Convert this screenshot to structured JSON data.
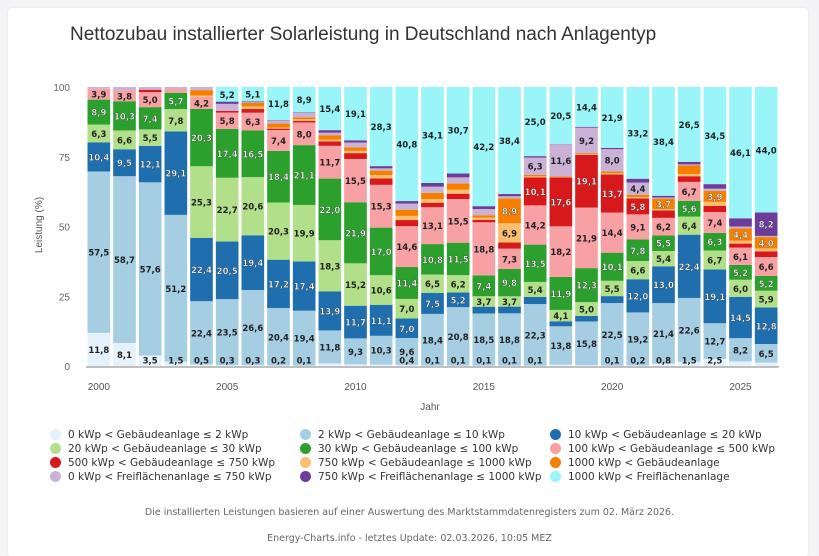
{
  "title": "Nettozubau installierter Solarleistung in Deutschland nach Anlagentyp",
  "footnotes": {
    "source": "Die installierten Leistungen basieren auf einer Auswertung des Marktstammdatenregisters zum 02. März 2026.",
    "update": "Energy-Charts.info - letztes Update: 02.03.2026, 10:05 MEZ"
  },
  "chart_data": {
    "type": "bar",
    "stacked": true,
    "title": "Nettozubau installierter Solarleistung in Deutschland nach Anlagentyp",
    "xlabel": "Jahr",
    "ylabel": "Leistung (%)",
    "ylim": [
      0,
      100
    ],
    "yticks": [
      "0",
      "25",
      "50",
      "75",
      "100"
    ],
    "xticks": [
      "2000",
      "2005",
      "2010",
      "2015",
      "2020",
      "2025"
    ],
    "legend_position": "bottom",
    "categories": [
      "2000",
      "2001",
      "2002",
      "2003",
      "2004",
      "2005",
      "2006",
      "2007",
      "2008",
      "2009",
      "2010",
      "2011",
      "2012",
      "2013",
      "2014",
      "2015",
      "2016",
      "2017",
      "2018",
      "2019",
      "2020",
      "2021",
      "2022",
      "2023",
      "2024",
      "2025",
      "2026"
    ],
    "series": [
      {
        "name": "0 kWp < Gebäudeanlage ≤ 2 kWp",
        "color": "#e6f2fb",
        "values": [
          11.8,
          8.1,
          3.5,
          1.5,
          0.5,
          0.3,
          0.3,
          0.2,
          0.1,
          0.9,
          0.6,
          0.5,
          0.4,
          0.1,
          0.1,
          0.1,
          0.1,
          0.1,
          0.5,
          0.3,
          0.1,
          0.2,
          0.8,
          1.5,
          2.5,
          1.6,
          1.2
        ]
      },
      {
        "name": "2 kWp < Gebäudeanlage ≤ 10 kWp",
        "color": "#a6cee3",
        "values": [
          57.5,
          58.7,
          57.6,
          51.2,
          22.4,
          23.5,
          26.6,
          20.4,
          19.4,
          11.8,
          9.3,
          10.3,
          9.6,
          18.4,
          20.8,
          18.5,
          18.8,
          22.3,
          13.8,
          15.8,
          22.5,
          19.2,
          21.4,
          22.6,
          12.7,
          8.2,
          6.5
        ]
      },
      {
        "name": "10 kWp < Gebäudeanlage ≤ 20 kWp",
        "color": "#1f6fae",
        "values": [
          10.4,
          9.5,
          12.1,
          29.1,
          22.4,
          20.5,
          19.4,
          17.2,
          17.4,
          13.9,
          11.7,
          11.1,
          7.0,
          7.5,
          5.2,
          2.4,
          2.4,
          2.6,
          1.8,
          2.0,
          2.5,
          12.0,
          13.0,
          22.4,
          19.1,
          14.5,
          12.8
        ]
      },
      {
        "name": "20 kWp < Gebäudeanlage ≤ 30 kWp",
        "color": "#b2df8a",
        "values": [
          6.3,
          6.6,
          5.5,
          7.8,
          25.3,
          22.7,
          20.6,
          20.3,
          19.9,
          18.3,
          15.2,
          10.6,
          7.0,
          6.5,
          6.2,
          3.7,
          3.7,
          5.4,
          4.1,
          5.0,
          5.5,
          6.6,
          5.4,
          6.4,
          6.7,
          6.0,
          5.9
        ]
      },
      {
        "name": "30 kWp < Gebäudeanlage ≤ 100 kWp",
        "color": "#2ca02c",
        "values": [
          8.9,
          10.3,
          7.4,
          5.7,
          20.3,
          17.4,
          16.5,
          18.4,
          21.1,
          22.0,
          21.9,
          17.0,
          11.4,
          10.8,
          11.5,
          7.4,
          9.8,
          13.5,
          11.9,
          12.3,
          10.1,
          7.8,
          5.5,
          5.6,
          6.3,
          5.2,
          5.2
        ]
      },
      {
        "name": "100 kWp < Gebäudeanlage ≤ 500 kWp",
        "color": "#f7a1a4",
        "values": [
          3.9,
          3.8,
          5.0,
          1.5,
          4.2,
          5.8,
          6.3,
          7.4,
          8.0,
          11.7,
          15.5,
          15.3,
          14.6,
          13.1,
          15.5,
          18.8,
          7.3,
          14.2,
          18.2,
          21.9,
          14.4,
          9.1,
          6.2,
          6.7,
          7.4,
          6.1,
          6.6
        ]
      },
      {
        "name": "500 kWp < Gebäudeanlage ≤ 750 kWp",
        "color": "#d7191c",
        "values": [
          0,
          0,
          0.8,
          0,
          0,
          0.6,
          1.3,
          0.5,
          0.6,
          1.6,
          2.1,
          2.3,
          2.2,
          1.6,
          1.9,
          0.8,
          2.2,
          10.1,
          17.6,
          19.1,
          13.7,
          5.8,
          2.6,
          2.0,
          2.2,
          1.4,
          2.0
        ]
      },
      {
        "name": "750 kWp < Gebäudeanlage ≤ 1000 kWp",
        "color": "#fdbf6f",
        "values": [
          0,
          0,
          0,
          0,
          0.5,
          0,
          0.9,
          0.4,
          0.6,
          0.6,
          0.8,
          1.2,
          1.5,
          1.3,
          1.4,
          0.8,
          6.9,
          0.4,
          0.2,
          0.3,
          0.5,
          0.5,
          0.5,
          0.8,
          1.4,
          1.0,
          1.0
        ]
      },
      {
        "name": "1000 kWp < Gebäudeanlage",
        "color": "#f77f00",
        "values": [
          0,
          0,
          0,
          0,
          1.9,
          0,
          1.3,
          1.4,
          0.6,
          1.6,
          1.3,
          1.6,
          2.2,
          2.2,
          2.2,
          0.9,
          8.9,
          0.5,
          0.2,
          0.3,
          0.6,
          0.8,
          3.7,
          3.0,
          3.9,
          4.4,
          4.0
        ]
      },
      {
        "name": "0 kWp < Freiflächenanlage ≤ 750 kWp",
        "color": "#cab2d6",
        "values": [
          0.6,
          1.2,
          0.9,
          0.5,
          1.1,
          2.5,
          0.2,
          1.0,
          1.6,
          0.9,
          1.7,
          0.8,
          2.2,
          2.2,
          2.2,
          2.2,
          0.8,
          6.3,
          11.6,
          9.2,
          8.0,
          4.4,
          0.4,
          0.4,
          0.8,
          0.6,
          0.4
        ]
      },
      {
        "name": "750 kWp < Freiflächenanlage ≤ 1000 kWp",
        "color": "#6a3d9a",
        "values": [
          0,
          0,
          0,
          0,
          0,
          0.8,
          0.3,
          0.2,
          0.2,
          0.9,
          0.8,
          0.8,
          0.9,
          1.3,
          1.4,
          1.0,
          0.8,
          0.5,
          0.1,
          0.3,
          0.4,
          1.4,
          0.6,
          0.9,
          1.6,
          2.9,
          8.2
        ]
      },
      {
        "name": "1000 kWp < Freiflächenanlage",
        "color": "#99f5f7",
        "values": [
          0,
          0,
          0,
          0,
          0,
          5.2,
          5.1,
          11.8,
          8.9,
          15.4,
          19.1,
          28.3,
          40.8,
          34.1,
          30.7,
          42.2,
          38.4,
          25.0,
          20.5,
          14.4,
          21.9,
          33.2,
          38.4,
          26.5,
          34.5,
          46.1,
          44.0
        ]
      }
    ],
    "labels_shown": {
      "2000": [
        "11,8",
        "57,5",
        "10,4",
        "6,3",
        "8,9",
        "3,9"
      ],
      "2001": [
        "8,1",
        "58,7",
        "9,5",
        "6,6",
        "10,3",
        "3,8"
      ],
      "2002": [
        "3,5",
        "57,6",
        "12,1",
        "5,5",
        "7,4",
        "5,0",
        "8,2"
      ],
      "2003": [
        "1,5",
        "51,2",
        "29,1",
        "7,8",
        "5,7"
      ],
      "2004": [
        "0,5",
        "22,4",
        "22,4",
        "25,3",
        "20,3",
        "4,2"
      ],
      "2005": [
        "0,3",
        "23,5",
        "20,5",
        "22,7",
        "17,4",
        "5,8",
        "5,2"
      ],
      "2006": [
        "0,3",
        "26,6",
        "19,4",
        "20,6",
        "16,5",
        "6,3",
        "1,3",
        "5,1"
      ],
      "2007": [
        "0,2",
        "20,4",
        "17,2",
        "20,3",
        "18,4",
        "7,4",
        "1,4",
        "11,8"
      ],
      "2008": [
        "0,1",
        "19,4",
        "17,4",
        "19,9",
        "21,1",
        "8,0",
        "1,6",
        "8,9"
      ],
      "2009": [
        "11,8",
        "13,9",
        "18,3",
        "22,0",
        "11,7",
        "1,6",
        "0,9",
        "15,4"
      ],
      "2010": [
        "9,3",
        "11,7",
        "15,2",
        "21,9",
        "15,5",
        "2,1",
        "0,8",
        "19,1"
      ],
      "2011": [
        "10,3",
        "11,1",
        "10,6",
        "17,0",
        "15,3",
        "2,3",
        "0,8",
        "28,3"
      ],
      "2012": [
        "9,6",
        "7,0",
        "7,0",
        "11,4",
        "14,6",
        "2,2",
        "2,2",
        "40,8"
      ],
      "2013": [
        "0,1",
        "18,4",
        "7,5",
        "6,5",
        "10,8",
        "13,1",
        "2,2",
        "34,1"
      ],
      "2014": [
        "0,1",
        "20,8",
        "5,2",
        "6,2",
        "11,5",
        "15,5",
        "2,2",
        "30,7"
      ],
      "2015": [
        "0,1",
        "18,5",
        "3,7",
        "7,4",
        "18,8",
        "2,2",
        "42,2"
      ],
      "2016": [
        "0,1",
        "18,8",
        "3,7",
        "9,8",
        "7,3",
        "6,9",
        "8,9",
        "0,8",
        "38,4"
      ],
      "2017": [
        "0,1",
        "22,3",
        "5,4",
        "13,5",
        "14,2",
        "10,1",
        "6,3",
        "25,0"
      ],
      "2018": [
        "13,8",
        "4,1",
        "11,9",
        "18,2",
        "17,6",
        "0,0",
        "11,6",
        "0,1",
        "20,5"
      ],
      "2019": [
        "15,8",
        "5,0",
        "12,3",
        "21,9",
        "19,1",
        "9,2",
        "14,4"
      ],
      "2020": [
        "0,1",
        "22,5",
        "5,5",
        "10,1",
        "14,4",
        "13,7",
        "8,0",
        "21,9"
      ],
      "2021": [
        "0,2",
        "19,2",
        "12,0",
        "6,6",
        "7,8",
        "9,1",
        "5,8",
        "4,4",
        "33,2"
      ],
      "2022": [
        "0,8",
        "21,4",
        "13,0",
        "5,4",
        "5,5",
        "6,2",
        "3,7",
        "38,4"
      ],
      "2023": [
        "1,5",
        "22,6",
        "22,4",
        "6,4",
        "5,6",
        "6,7",
        "3,0",
        "26,5"
      ],
      "2024": [
        "2,5",
        "12,7",
        "19,1",
        "6,7",
        "6,3",
        "7,4",
        "3,9",
        "34,5"
      ],
      "2025": [
        "8,2",
        "14,5",
        "6,0",
        "5,2",
        "6,1",
        "4,4",
        "46,1"
      ],
      "2026": [
        "6,5",
        "12,8",
        "5,9",
        "5,2",
        "6,6",
        "4,0",
        "8,2",
        "44,0"
      ]
    }
  },
  "legend": [
    {
      "label": "0 kWp < Gebäudeanlage ≤ 2 kWp",
      "color": "#e6f2fb"
    },
    {
      "label": "2 kWp < Gebäudeanlage ≤ 10 kWp",
      "color": "#a6cee3"
    },
    {
      "label": "10 kWp < Gebäudeanlage ≤ 20 kWp",
      "color": "#1f6fae"
    },
    {
      "label": "20 kWp < Gebäudeanlage ≤ 30 kWp",
      "color": "#b2df8a"
    },
    {
      "label": "30 kWp < Gebäudeanlage ≤ 100 kWp",
      "color": "#2ca02c"
    },
    {
      "label": "100 kWp < Gebäudeanlage ≤ 500 kWp",
      "color": "#f7a1a4"
    },
    {
      "label": "500 kWp < Gebäudeanlage ≤ 750 kWp",
      "color": "#d7191c"
    },
    {
      "label": "750 kWp < Gebäudeanlage ≤ 1000 kWp",
      "color": "#fdbf6f"
    },
    {
      "label": "1000 kWp < Gebäudeanlage",
      "color": "#f77f00"
    },
    {
      "label": "0 kWp < Freiflächenanlage ≤ 750 kWp",
      "color": "#cab2d6"
    },
    {
      "label": "750 kWp < Freiflächenanlage ≤ 1000 kWp",
      "color": "#6a3d9a"
    },
    {
      "label": "1000 kWp < Freiflächenanlage",
      "color": "#99f5f7"
    }
  ]
}
